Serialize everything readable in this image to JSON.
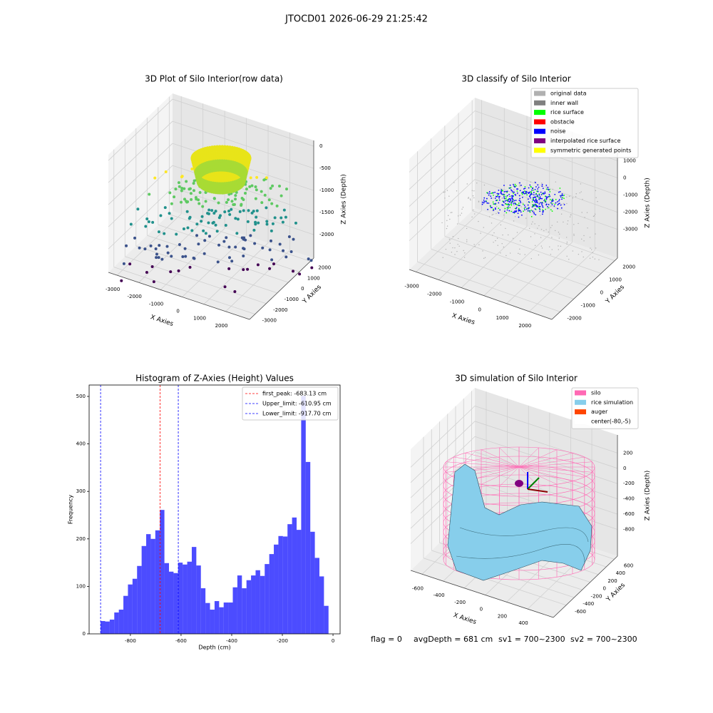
{
  "title": "JTOCD01 2026-06-29 21:25:42",
  "chart_data": [
    {
      "type": "scatter3d",
      "title": "3D Plot of Silo Interior(row data)",
      "xlabel": "X Axies",
      "ylabel": "Y Axies",
      "zlabel": "Z Axies (Depth)",
      "xlim": [
        -3400,
        3100
      ],
      "ylim": [
        -3500,
        2300
      ],
      "zlim": [
        -2530,
        130
      ],
      "xticks": [
        -3000,
        -2000,
        -1000,
        0,
        1000,
        2000
      ],
      "yticks": [
        -3000,
        -2000,
        -1000,
        0,
        1000,
        2000
      ],
      "zticks": [
        -2000,
        -1500,
        -1000,
        -500,
        0
      ],
      "grid": true
    },
    {
      "type": "scatter3d",
      "title": "3D classify of Silo Interior",
      "xlabel": "X Axies",
      "ylabel": "Y Axies",
      "zlabel": "Z Axies (Depth)",
      "xlim": [
        -3300,
        3000
      ],
      "ylim": [
        -2600,
        2200
      ],
      "zlim": [
        -4680,
        1770
      ],
      "xticks": [
        -3000,
        -2000,
        -1000,
        0,
        1000,
        2000
      ],
      "yticks": [
        -2000,
        -1000,
        0,
        1000,
        2000
      ],
      "zticks": [
        -3000,
        -2000,
        -1000,
        0,
        1000
      ],
      "grid": true,
      "legend_position": "upper right",
      "series": [
        {
          "name": "original data",
          "color": "#b0b0b0"
        },
        {
          "name": "inner wall",
          "color": "#808080"
        },
        {
          "name": "rice surface",
          "color": "#00ff00"
        },
        {
          "name": "obstacle",
          "color": "#ff0000"
        },
        {
          "name": "noise",
          "color": "#0000ff"
        },
        {
          "name": "interpolated rice surface",
          "color": "#800080"
        },
        {
          "name": "symmetric generated points",
          "color": "#ffff00"
        }
      ]
    },
    {
      "type": "histogram",
      "title": "Histogram of Z-Axies (Height) Values",
      "xlabel": "Depth (cm)",
      "ylabel": "Frequency",
      "color": "#0000ff",
      "bins": [
        -917.7,
        -899.7,
        -881.7,
        -863.7,
        -845.7,
        -827.7,
        -809.7,
        -791.7,
        -773.7,
        -755.7,
        -737.7,
        -719.7,
        -701.7,
        -683.7,
        -665.7,
        -647.7,
        -629.7,
        -611.7,
        -593.7,
        -575.7,
        -557.7,
        -539.7,
        -521.7,
        -503.7,
        -485.7,
        -467.7,
        -449.7,
        -431.7,
        -413.7,
        -395.7,
        -377.7,
        -359.7,
        -341.7,
        -323.7,
        -305.7,
        -287.7,
        -269.7,
        -251.7,
        -233.7,
        -215.7,
        -197.7,
        -179.7,
        -161.7,
        -143.7,
        -125.7,
        -107.7,
        -89.7,
        -71.7,
        -53.7,
        -35.7,
        -17.7
      ],
      "values": [
        27,
        26,
        30,
        45,
        51,
        80,
        104,
        116,
        143,
        185,
        210,
        200,
        218,
        261,
        149,
        131,
        128,
        150,
        146,
        152,
        183,
        144,
        96,
        65,
        51,
        69,
        56,
        66,
        66,
        98,
        123,
        96,
        113,
        123,
        134,
        122,
        147,
        168,
        188,
        206,
        205,
        231,
        245,
        219,
        501,
        362,
        215,
        160,
        121,
        59
      ],
      "xlim": [
        -963,
        28
      ],
      "ylim": [
        0,
        524
      ],
      "xticks": [
        -800,
        -600,
        -400,
        -200,
        0
      ],
      "yticks": [
        0,
        100,
        200,
        300,
        400,
        500
      ],
      "legend_position": "upper right",
      "vlines": [
        {
          "name": "first_peak: -683.13 cm",
          "value": -683.13,
          "color": "#ff0000"
        },
        {
          "name": "Upper_limit: -610.95 cm",
          "value": -610.95,
          "color": "#0000ff"
        },
        {
          "name": "Lower_limit: -917.70 cm",
          "value": -917.7,
          "color": "#0000ff"
        }
      ]
    },
    {
      "type": "surface3d",
      "title": "3D simulation of Silo Interior",
      "xlabel": "X Axies",
      "ylabel": "Y Axies",
      "zlabel": "Z Axies (Depth)",
      "xlim": [
        -708,
        643
      ],
      "ylim": [
        -920,
        680
      ],
      "zlim": [
        -1150,
        437
      ],
      "xticks": [
        -600,
        -400,
        -200,
        0,
        200,
        400
      ],
      "yticks": [
        -600,
        -400,
        -200,
        0,
        200,
        400,
        600
      ],
      "zticks": [
        -800,
        -600,
        -400,
        -200,
        0,
        200
      ],
      "grid": true,
      "legend_position": "upper right",
      "series": [
        {
          "name": "silo",
          "color": "#ff69b4"
        },
        {
          "name": "rice simulation",
          "color": "#87ceeb"
        },
        {
          "name": "auger",
          "color": "#ff4500"
        },
        {
          "name": "center(-80,-5)",
          "color": "#ffffff"
        }
      ]
    }
  ],
  "footer": [
    "flag = 0",
    "avgDepth = 681 cm",
    "sv1 = 700~2300",
    "sv2 = 700~2300"
  ]
}
